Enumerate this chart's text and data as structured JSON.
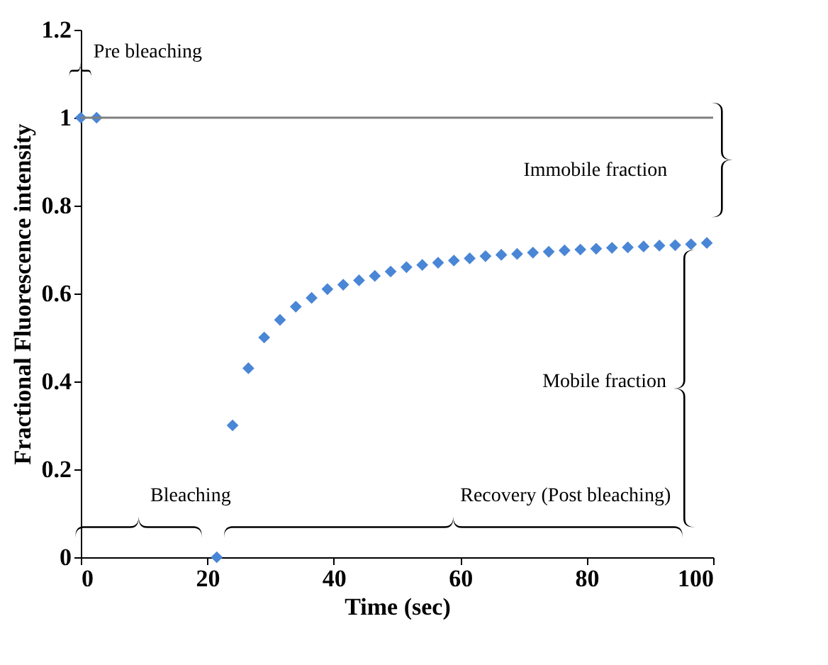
{
  "chart_data": {
    "type": "scatter",
    "xlabel": "Time (sec)",
    "ylabel": "Fractional Fluorescence intensity",
    "x": [
      0,
      2.5,
      21.5,
      24,
      26.5,
      29,
      31.5,
      34,
      36.5,
      39,
      41.5,
      44,
      46.5,
      49,
      51.5,
      54,
      56.5,
      59,
      61.5,
      64,
      66.5,
      69,
      71.5,
      74,
      76.5,
      79,
      81.5,
      84,
      86.5,
      89,
      91.5,
      94,
      96.5,
      99
    ],
    "series": [
      {
        "color": "#4a86d6",
        "values": [
          1,
          1,
          0,
          0.3,
          0.43,
          0.5,
          0.54,
          0.57,
          0.59,
          0.61,
          0.62,
          0.63,
          0.64,
          0.65,
          0.66,
          0.665,
          0.67,
          0.675,
          0.68,
          0.685,
          0.688,
          0.69,
          0.693,
          0.695,
          0.698,
          0.7,
          0.702,
          0.704,
          0.705,
          0.707,
          0.709,
          0.71,
          0.712,
          0.715
        ]
      }
    ],
    "xlim": [
      0,
      100
    ],
    "xticks": [
      0,
      20,
      40,
      60,
      80,
      100
    ],
    "ylim": [
      0,
      1.2
    ],
    "yticks": [
      0,
      0.2,
      0.4,
      0.6,
      0.8,
      1,
      1.2
    ],
    "marker": "diamond",
    "grid": false,
    "ref_lines": [
      {
        "axis": "y",
        "value": 1,
        "color": "#808080"
      }
    ],
    "annotations": [
      "Pre bleaching",
      "Immobile fraction",
      "Mobile fraction",
      "Bleaching",
      "Recovery (Post bleaching)"
    ]
  }
}
